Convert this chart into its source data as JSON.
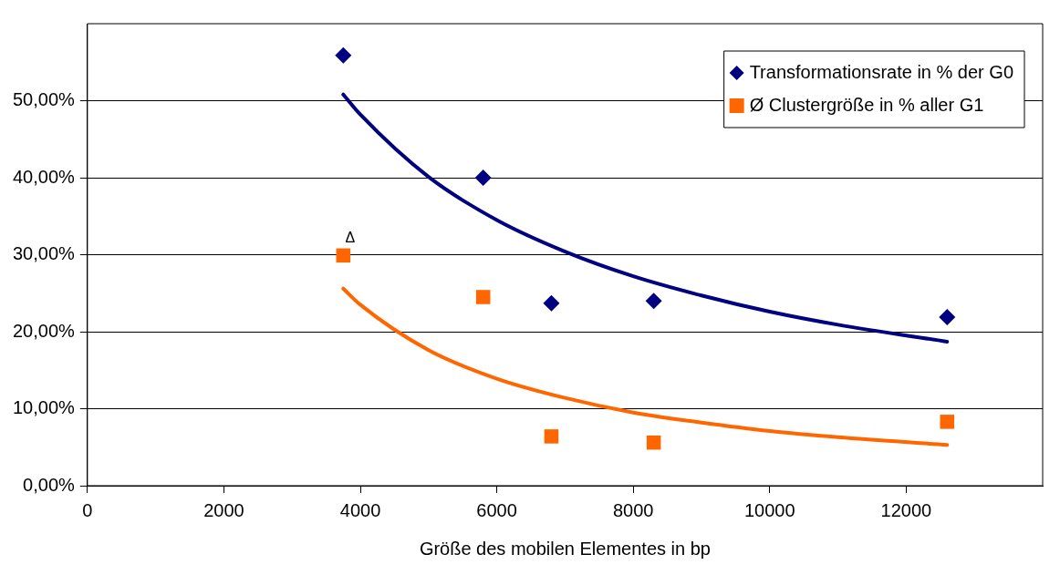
{
  "chart_data": {
    "type": "scatter",
    "xlabel": "Größe des mobilen Elementes in bp",
    "xlim": [
      0,
      14000
    ],
    "xticks": [
      0,
      2000,
      4000,
      6000,
      8000,
      10000,
      12000
    ],
    "ylim": [
      0,
      60
    ],
    "yticks": [
      {
        "value": 0,
        "label": "0,00%"
      },
      {
        "value": 10,
        "label": "10,00%"
      },
      {
        "value": 20,
        "label": "20,00%"
      },
      {
        "value": 30,
        "label": "30,00%"
      },
      {
        "value": 40,
        "label": "40,00%"
      },
      {
        "value": 50,
        "label": "50,00%"
      }
    ],
    "grid": "y",
    "legend": "top right",
    "series": [
      {
        "name": "Transformationsrate in % der G0",
        "marker": "diamond",
        "color": "#000080",
        "x": [
          3750,
          5800,
          6800,
          8300,
          12600
        ],
        "values": [
          55.9,
          40.0,
          23.7,
          24.0,
          21.9
        ]
      },
      {
        "name": "Ø Clustergröße in % aller G1",
        "marker": "square",
        "color": "#ff6600",
        "x": [
          3750,
          5800,
          6800,
          8300,
          12600
        ],
        "values": [
          29.9,
          24.5,
          6.4,
          5.6,
          8.3
        ]
      },
      {
        "type": "line",
        "marker": "none",
        "color": "#000080",
        "x": [
          3750,
          4000,
          5000,
          6000,
          7000,
          8000,
          9000,
          10000,
          11000,
          12600
        ],
        "values": [
          50.8,
          48.2,
          40.1,
          34.5,
          30.4,
          27.2,
          24.7,
          22.6,
          20.9,
          18.7
        ]
      },
      {
        "type": "line",
        "marker": "none",
        "color": "#ff6600",
        "x": [
          3750,
          4000,
          5000,
          6000,
          7000,
          8000,
          9000,
          10000,
          11000,
          12600
        ],
        "values": [
          25.6,
          23.5,
          17.6,
          13.9,
          11.4,
          9.5,
          8.2,
          7.1,
          6.3,
          5.3
        ]
      }
    ],
    "annotations": [
      "Δ"
    ]
  }
}
